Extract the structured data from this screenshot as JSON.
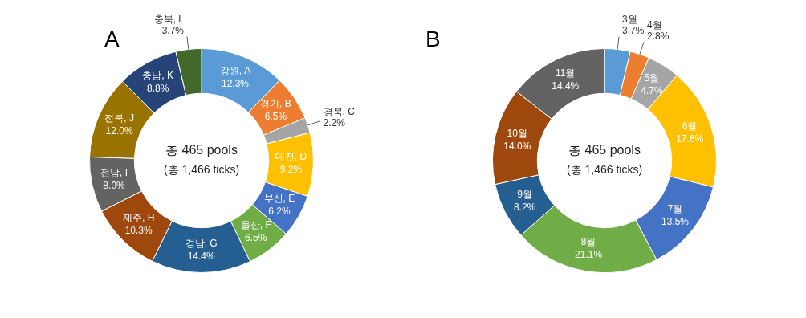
{
  "chart_data": [
    {
      "type": "doughnut",
      "title": "A",
      "annotations": [
        "총 465 pools",
        "(총 1,466 ticks)"
      ],
      "categories": [
        "강원, A",
        "경기, B",
        "경북, C",
        "대전, D",
        "부산, E",
        "울산, F",
        "경남, G",
        "제주, H",
        "전남, I",
        "전북, J",
        "충남, K",
        "충북, L"
      ],
      "values": [
        12.3,
        6.5,
        2.2,
        9.2,
        6.2,
        6.5,
        14.4,
        10.3,
        8.0,
        12.0,
        8.8,
        3.7
      ],
      "value_labels": [
        "12.3%",
        "6.5%",
        "2.2%",
        "9.2%",
        "6.2%",
        "6.5%",
        "14.4%",
        "10.3%",
        "8.0%",
        "12.0%",
        "8.8%",
        "3.7%"
      ],
      "colors": [
        "#5b9bd5",
        "#ed7d31",
        "#a5a5a5",
        "#ffc000",
        "#4472c4",
        "#70ad47",
        "#255e91",
        "#9e480e",
        "#636363",
        "#997300",
        "#264478",
        "#43682b"
      ],
      "data_labels": true
    },
    {
      "type": "doughnut",
      "title": "B",
      "annotations": [
        "총 465 pools",
        "(총 1,466 ticks)"
      ],
      "categories": [
        "3월",
        "4월",
        "5월",
        "6월",
        "7월",
        "8월",
        "9월",
        "10월",
        "11월"
      ],
      "values": [
        3.7,
        2.8,
        4.7,
        17.6,
        13.5,
        21.1,
        8.2,
        14.0,
        14.4
      ],
      "value_labels": [
        "3.7%",
        "2.8%",
        "4.7%",
        "17.6%",
        "13.5%",
        "21.1%",
        "8.2%",
        "14.0%",
        "14.4%"
      ],
      "colors": [
        "#5b9bd5",
        "#ed7d31",
        "#a5a5a5",
        "#ffc000",
        "#4472c4",
        "#70ad47",
        "#255e91",
        "#9e480e",
        "#636363"
      ],
      "data_labels": true
    }
  ]
}
